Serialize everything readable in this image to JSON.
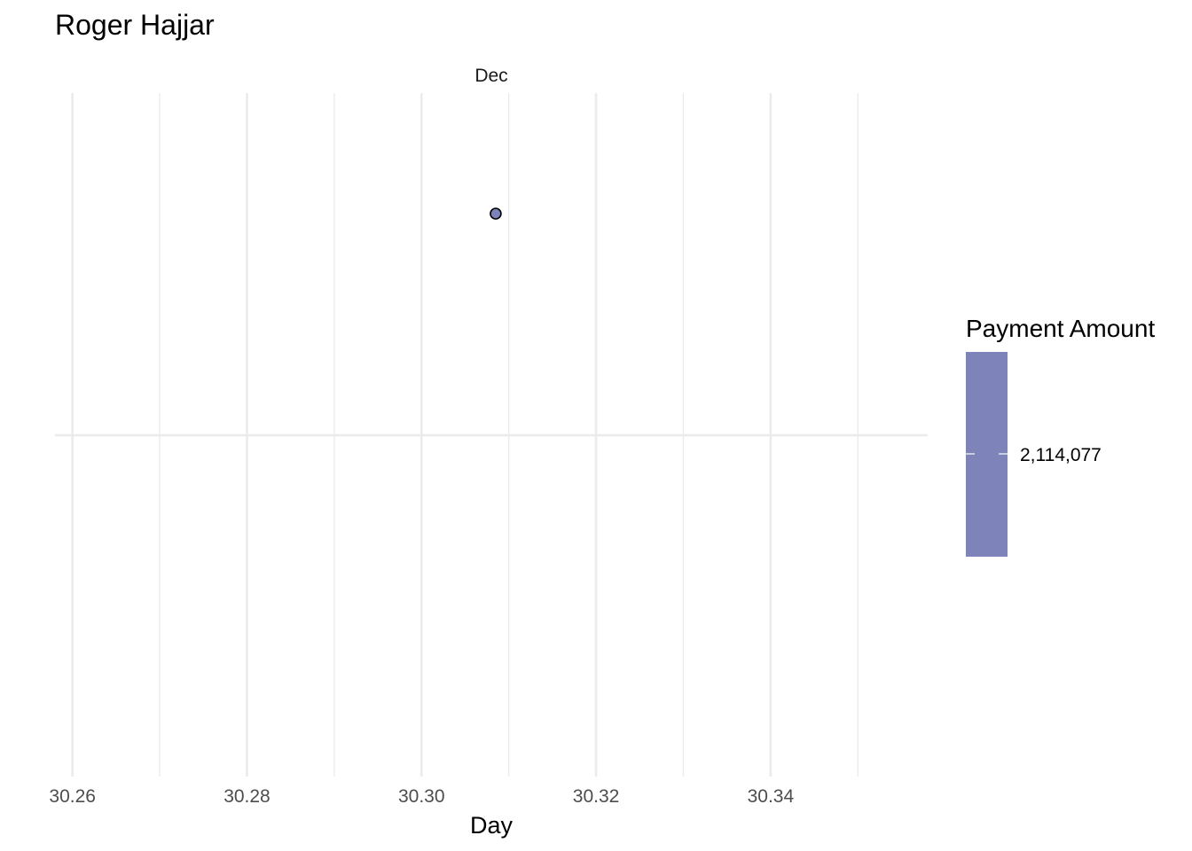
{
  "chart_data": {
    "type": "scatter",
    "title": "Roger Hajjar",
    "facet": "Dec",
    "xlabel": "Day",
    "ylabel": "",
    "xlim": [
      30.258,
      30.358
    ],
    "x_ticks": [
      30.26,
      30.28,
      30.3,
      30.32,
      30.34
    ],
    "x_tick_labels": [
      "30.26",
      "30.28",
      "30.30",
      "30.32",
      "30.34"
    ],
    "grid": true,
    "series": [
      {
        "points": [
          {
            "x": 30.3085,
            "y": 0.5,
            "value": 2114077
          }
        ],
        "color": "#7b83ba",
        "stroke": "#000000"
      }
    ],
    "legend": {
      "title": "Payment Amount",
      "type": "colorbar",
      "placement": "right",
      "color": "#7e84ba",
      "labels": [
        "2,114,077"
      ]
    }
  }
}
